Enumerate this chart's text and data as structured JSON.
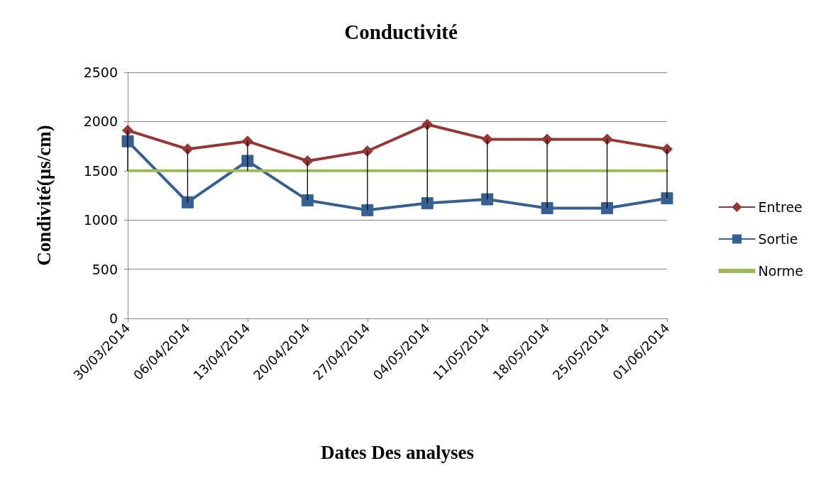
{
  "chart_data": {
    "type": "line",
    "title": "Conductivité",
    "xlabel": "Dates Des analyses",
    "ylabel": "Condivité(µs/cm)",
    "categories": [
      "30/03/2014",
      "06/04/2014",
      "13/04/2014",
      "20/04/2014",
      "27/04/2014",
      "04/05/2014",
      "11/05/2014",
      "18/05/2014",
      "25/05/2014",
      "01/06/2014"
    ],
    "series": [
      {
        "name": "Entree",
        "color": "#953735",
        "marker": "diamond",
        "values": [
          1910,
          1720,
          1800,
          1600,
          1700,
          1970,
          1820,
          1820,
          1820,
          1720
        ],
        "errors": [
          [
            1500,
            1910
          ],
          [
            1180,
            1720
          ],
          [
            1500,
            1800
          ],
          [
            1200,
            1600
          ],
          [
            1100,
            1700
          ],
          [
            1170,
            1970
          ],
          [
            1210,
            1820
          ],
          [
            1120,
            1820
          ],
          [
            1120,
            1820
          ],
          [
            1220,
            1720
          ]
        ]
      },
      {
        "name": "Sortie",
        "color": "#376092",
        "marker": "square",
        "values": [
          1800,
          1180,
          1600,
          1200,
          1100,
          1170,
          1210,
          1120,
          1120,
          1220
        ]
      },
      {
        "name": "Norme",
        "color": "#9bbb59",
        "marker": "none",
        "values": [
          1500,
          1500,
          1500,
          1500,
          1500,
          1500,
          1500,
          1500,
          1500,
          1500
        ]
      }
    ],
    "ylim": [
      0,
      2500
    ],
    "yticks": [
      0,
      500,
      1000,
      1500,
      2000,
      2500
    ],
    "grid": "y",
    "legend": "right"
  }
}
